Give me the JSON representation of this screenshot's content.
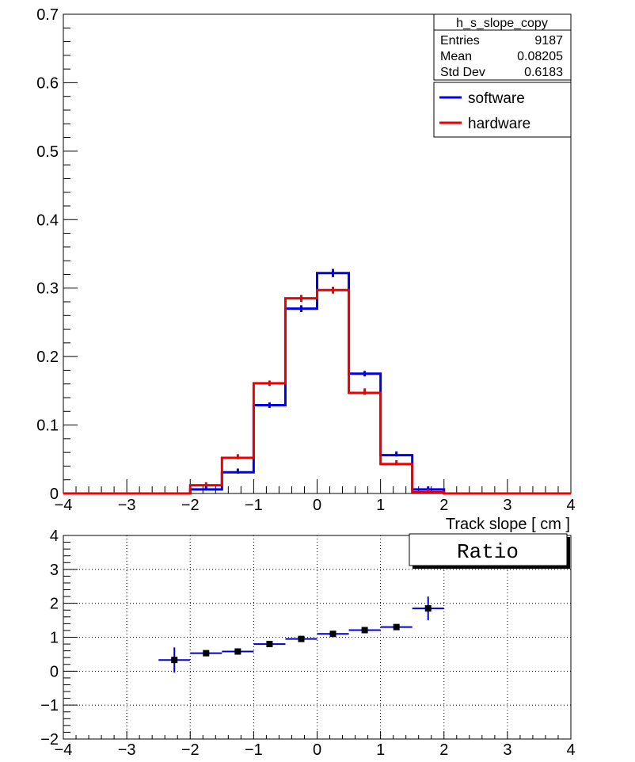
{
  "chart_data": [
    {
      "type": "histogram",
      "xlabel": "Track slope [ cm ]",
      "xlim": [
        -4,
        4
      ],
      "ylim": [
        0,
        0.7
      ],
      "yticks": [
        "0",
        "0.1",
        "0.2",
        "0.3",
        "0.4",
        "0.5",
        "0.6",
        "0.7"
      ],
      "xticks": [
        "−4",
        "−3",
        "−2",
        "−1",
        "0",
        "1",
        "2",
        "3",
        "4"
      ],
      "bin_edges": [
        -4,
        -3.5,
        -3,
        -2.5,
        -2,
        -1.5,
        -1,
        -0.5,
        0,
        0.5,
        1,
        1.5,
        2,
        2.5,
        3,
        3.5,
        4
      ],
      "stats_box": {
        "title": "h_s_slope_copy",
        "rows": [
          {
            "label": "Entries",
            "value": "9187"
          },
          {
            "label": "Mean",
            "value": "0.08205"
          },
          {
            "label": "Std Dev",
            "value": "0.6183"
          }
        ]
      },
      "series": [
        {
          "name": "software",
          "color": "#0000ee",
          "values": [
            0,
            0,
            0,
            0,
            0.006,
            0.031,
            0.129,
            0.27,
            0.322,
            0.175,
            0.056,
            0.006,
            0,
            0,
            0,
            0
          ],
          "errors": [
            0,
            0,
            0,
            0,
            0.001,
            0.002,
            0.004,
            0.005,
            0.006,
            0.004,
            0.002,
            0.001,
            0,
            0,
            0,
            0
          ]
        },
        {
          "name": "hardware",
          "color": "#ee0000",
          "values": [
            0,
            0,
            0,
            0,
            0.012,
            0.052,
            0.161,
            0.285,
            0.297,
            0.147,
            0.043,
            0.002,
            0,
            0,
            0,
            0
          ],
          "errors": [
            0,
            0,
            0,
            0,
            0.001,
            0.002,
            0.004,
            0.005,
            0.005,
            0.003,
            0.002,
            0.001,
            0,
            0,
            0,
            0
          ]
        }
      ]
    },
    {
      "type": "scatter",
      "title": "Ratio",
      "xlim": [
        -4,
        4
      ],
      "ylim": [
        -2,
        4
      ],
      "yticks": [
        "−2",
        "−1",
        "0",
        "1",
        "2",
        "3",
        "4"
      ],
      "xticks": [
        "−4",
        "−3",
        "−2",
        "−1",
        "0",
        "1",
        "2",
        "3",
        "4"
      ],
      "grid": true,
      "marker_color": "#000000",
      "error_color": "#0000cc",
      "x": [
        -2.25,
        -1.75,
        -1.25,
        -0.75,
        -0.25,
        0.25,
        0.75,
        1.25,
        1.75
      ],
      "y": [
        0.33,
        0.53,
        0.58,
        0.8,
        0.95,
        1.1,
        1.21,
        1.3,
        1.85
      ],
      "yerr": [
        0.37,
        0.06,
        0.04,
        0.03,
        0.02,
        0.03,
        0.03,
        0.05,
        0.35
      ]
    }
  ]
}
